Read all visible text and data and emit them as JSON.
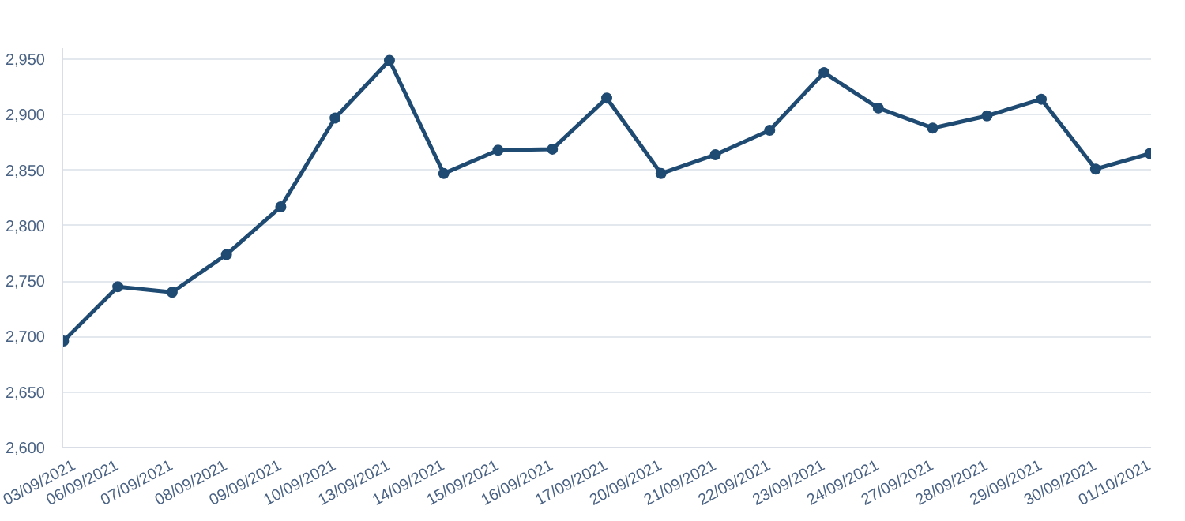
{
  "chart_data": {
    "type": "line",
    "categories": [
      "03/09/2021",
      "06/09/2021",
      "07/09/2021",
      "08/09/2021",
      "09/09/2021",
      "10/09/2021",
      "13/09/2021",
      "14/09/2021",
      "15/09/2021",
      "16/09/2021",
      "17/09/2021",
      "20/09/2021",
      "21/09/2021",
      "22/09/2021",
      "23/09/2021",
      "24/09/2021",
      "27/09/2021",
      "28/09/2021",
      "29/09/2021",
      "30/09/2021",
      "01/10/2021"
    ],
    "series": [
      {
        "color": "#1f4a72",
        "values": [
          2696,
          2745,
          2740,
          2774,
          2817,
          2897,
          2949,
          2847,
          2868,
          2869,
          2915,
          2847,
          2864,
          2886,
          2938,
          2906,
          2888,
          2899,
          2914,
          2851,
          2865
        ]
      }
    ],
    "ylim": [
      2600,
      2960
    ],
    "yticks": [
      {
        "value": 2600,
        "label": "2,600"
      },
      {
        "value": 2650,
        "label": "2,650"
      },
      {
        "value": 2700,
        "label": "2,700"
      },
      {
        "value": 2750,
        "label": "2,750"
      },
      {
        "value": 2800,
        "label": "2,800"
      },
      {
        "value": 2850,
        "label": "2,850"
      },
      {
        "value": 2900,
        "label": "2,900"
      },
      {
        "value": 2950,
        "label": "2,950"
      }
    ],
    "grid": "y",
    "marker": "circle",
    "line_style": "solid"
  }
}
